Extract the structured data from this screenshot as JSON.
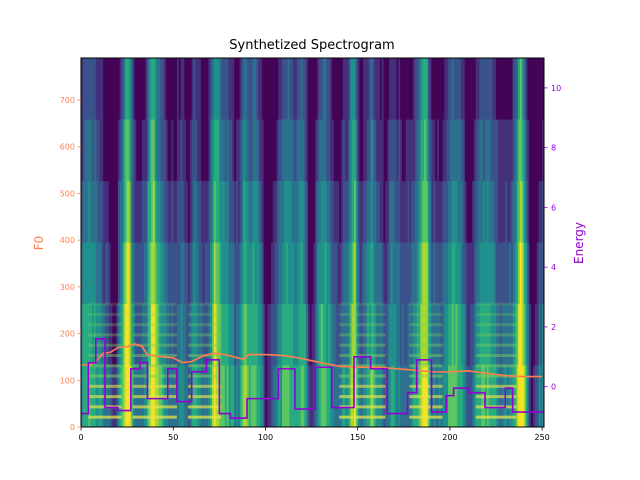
{
  "chart_data": {
    "type": "line",
    "title": "Synthetized Spectrogram",
    "background": "spectrogram-heatmap",
    "colormap": "viridis",
    "x_range": [
      0,
      251
    ],
    "x_ticks": [
      0,
      50,
      100,
      150,
      200,
      250
    ],
    "left_axis": {
      "label": "F0",
      "color": "#ff7f50",
      "range": [
        0,
        790
      ],
      "ticks": [
        0,
        100,
        200,
        300,
        400,
        500,
        600,
        700
      ]
    },
    "right_axis": {
      "label": "Energy",
      "color": "#9400d3",
      "range": [
        -1.35,
        11
      ],
      "ticks": [
        0,
        2,
        4,
        6,
        8,
        10
      ]
    },
    "series": [
      {
        "name": "",
        "axis": "left",
        "color": "#ff7f50",
        "x": [
          0,
          5,
          8,
          12,
          16,
          20,
          25,
          29,
          33,
          36,
          40,
          45,
          50,
          55,
          60,
          66,
          72,
          78,
          83,
          88,
          91,
          100,
          110,
          118,
          125,
          130,
          140,
          150,
          160,
          170,
          180,
          190,
          200,
          210,
          220,
          230,
          240,
          250
        ],
        "y": [
          133,
          133,
          140,
          158,
          160,
          170,
          172,
          178,
          173,
          155,
          152,
          150,
          148,
          138,
          140,
          152,
          158,
          155,
          150,
          145,
          155,
          155,
          153,
          148,
          142,
          138,
          130,
          128,
          128,
          125,
          122,
          118,
          118,
          120,
          115,
          110,
          108,
          108
        ]
      },
      {
        "name": "",
        "axis": "right",
        "color": "#9400d3",
        "step": [
          [
            0,
            -0.9
          ],
          [
            4,
            0.8
          ],
          [
            8,
            1.6
          ],
          [
            13,
            -0.7
          ],
          [
            20,
            -0.8
          ],
          [
            27,
            0.6
          ],
          [
            32,
            0.8
          ],
          [
            36,
            -0.4
          ],
          [
            47,
            0.6
          ],
          [
            52,
            -0.5
          ],
          [
            60,
            0.5
          ],
          [
            68,
            0.9
          ],
          [
            75,
            -0.9
          ],
          [
            81,
            -1.05
          ],
          [
            90,
            -0.4
          ],
          [
            107,
            0.6
          ],
          [
            116,
            -0.75
          ],
          [
            127,
            0.65
          ],
          [
            136,
            -0.7
          ],
          [
            148,
            1.0
          ],
          [
            157,
            0.6
          ],
          [
            166,
            -0.9
          ],
          [
            177,
            -0.2
          ],
          [
            182,
            0.9
          ],
          [
            190,
            -0.85
          ],
          [
            198,
            -0.3
          ],
          [
            202,
            -0.05
          ],
          [
            210,
            -0.2
          ],
          [
            219,
            -0.7
          ],
          [
            230,
            -0.05
          ],
          [
            234,
            -0.85
          ],
          [
            251,
            -0.85
          ]
        ]
      }
    ],
    "spectrogram": {
      "dark_columns": [
        18,
        58,
        100,
        125,
        150,
        165,
        212,
        244
      ],
      "bright_columns": [
        25,
        38,
        72,
        88,
        120,
        148,
        157,
        186,
        213,
        238
      ],
      "harmonic_bands": [
        [
          4,
          22
        ],
        [
          28,
          52
        ],
        [
          58,
          76
        ],
        [
          140,
          165
        ],
        [
          178,
          196
        ],
        [
          214,
          236
        ]
      ]
    }
  }
}
